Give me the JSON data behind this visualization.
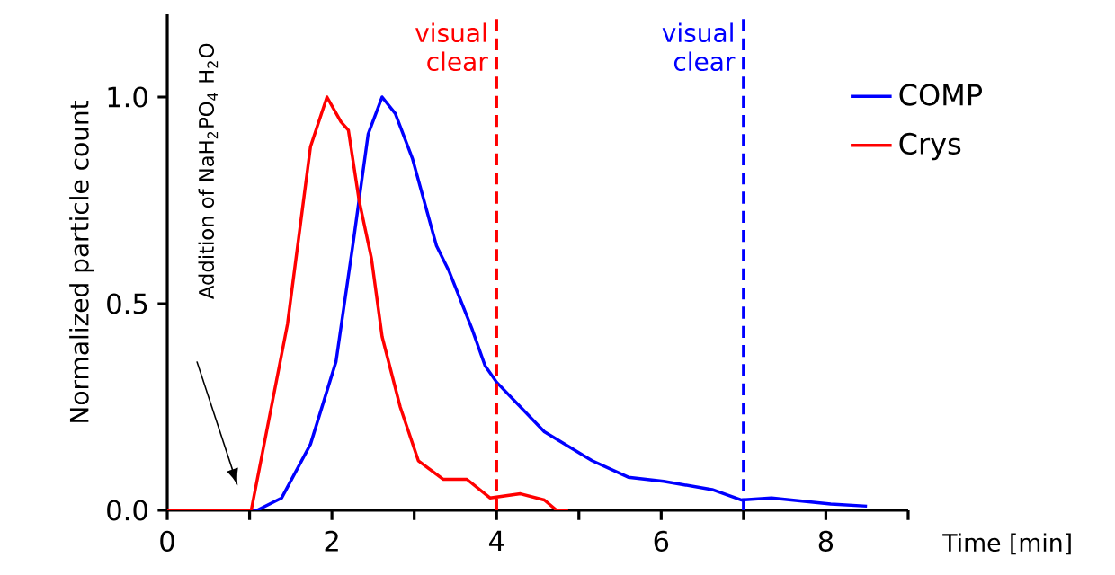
{
  "chart_data": {
    "type": "line",
    "xlabel": "Time [min]",
    "ylabel": "Normalized particle count",
    "xlim": [
      0,
      9
    ],
    "ylim": [
      0,
      1.2
    ],
    "xticks": [
      0,
      {
        "value": 1,
        "label": null
      },
      2,
      {
        "value": 3,
        "label": null
      },
      4,
      {
        "value": 5,
        "label": null
      },
      6,
      {
        "value": 7,
        "label": null
      },
      8,
      {
        "value": 9,
        "label": null
      }
    ],
    "yticks": [
      {
        "value": 0,
        "label": "0.0"
      },
      {
        "value": 0.5,
        "label": "0.5"
      },
      {
        "value": 1,
        "label": "1.0"
      }
    ],
    "grid": false,
    "legend": "top right",
    "marker": "none",
    "line_style": "solid",
    "series": [
      {
        "name": "COMP",
        "color": "#0000ff",
        "x": [
          0,
          1.09,
          1.39,
          1.74,
          2.05,
          2.26,
          2.44,
          2.61,
          2.77,
          2.98,
          3.27,
          3.42,
          3.7,
          3.86,
          4.0,
          4.58,
          5.16,
          5.6,
          6.03,
          6.62,
          6.97,
          7.34,
          8.06,
          8.5
        ],
        "values": [
          0,
          0,
          0.03,
          0.16,
          0.36,
          0.65,
          0.91,
          1.0,
          0.96,
          0.85,
          0.64,
          0.58,
          0.44,
          0.35,
          0.31,
          0.19,
          0.12,
          0.08,
          0.07,
          0.05,
          0.025,
          0.03,
          0.015,
          0.01
        ]
      },
      {
        "name": "Crys",
        "color": "#ff0000",
        "x": [
          0,
          1.02,
          1.46,
          1.74,
          1.94,
          2.11,
          2.2,
          2.33,
          2.48,
          2.61,
          2.83,
          3.05,
          3.35,
          3.64,
          3.92,
          4.29,
          4.58,
          4.73,
          4.87
        ],
        "values": [
          0,
          0,
          0.45,
          0.88,
          1.0,
          0.94,
          0.92,
          0.75,
          0.61,
          0.42,
          0.25,
          0.12,
          0.075,
          0.075,
          0.03,
          0.04,
          0.025,
          0,
          0
        ]
      }
    ],
    "ref_lines": [
      {
        "axis": "x",
        "value": 4,
        "label": "visual clear",
        "color": "#ff0000",
        "line_style": "dashed"
      },
      {
        "axis": "x",
        "value": 7,
        "label": "visual clear",
        "color": "#0000ff",
        "line_style": "dashed"
      }
    ],
    "annotations": [
      "Addition of NaH$_{2}$PO$_{4}$ H$_{2}$O"
    ]
  }
}
